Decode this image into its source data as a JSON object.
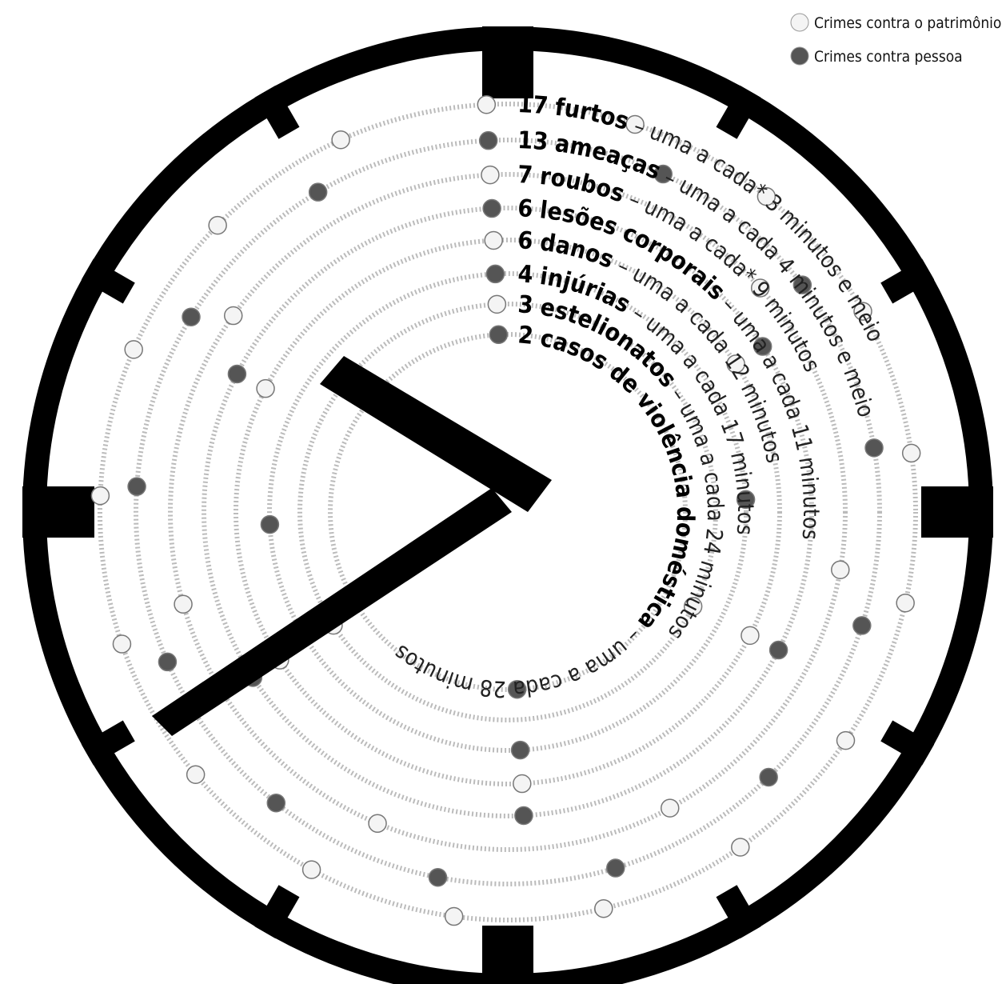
{
  "legend": [
    {
      "label": "Crimes contra o patrimônio",
      "color": "#f4f4f4"
    },
    {
      "label": "Crimes contra pessoa",
      "color": "#555"
    }
  ],
  "rings": [
    {
      "count": 17,
      "name": "furtos",
      "desc": "– uma a cada* 3 minutos e meio",
      "legend_index": 0
    },
    {
      "count": 13,
      "name": "ameaças",
      "desc": "– uma a cada 4 minutos e meio",
      "legend_index": 1
    },
    {
      "count": 7,
      "name": "roubos",
      "desc": "– uma a cada* 9 minutos",
      "legend_index": 0
    },
    {
      "count": 6,
      "name": "lesões corporais",
      "desc": "– uma a cada 11 minutos",
      "legend_index": 1
    },
    {
      "count": 6,
      "name": "danos",
      "desc": "– uma a cada 12 minutos",
      "legend_index": 0
    },
    {
      "count": 4,
      "name": "injúrias",
      "desc": "– uma a cada 17 minutos",
      "legend_index": 1
    },
    {
      "count": 3,
      "name": "estelionatos",
      "desc": "– uma a cada 24 minutos",
      "legend_index": 0
    },
    {
      "count": 2,
      "name": "casos de violência doméstica",
      "desc": "– uma a cada 28 minutos",
      "legend_index": 1
    }
  ]
}
